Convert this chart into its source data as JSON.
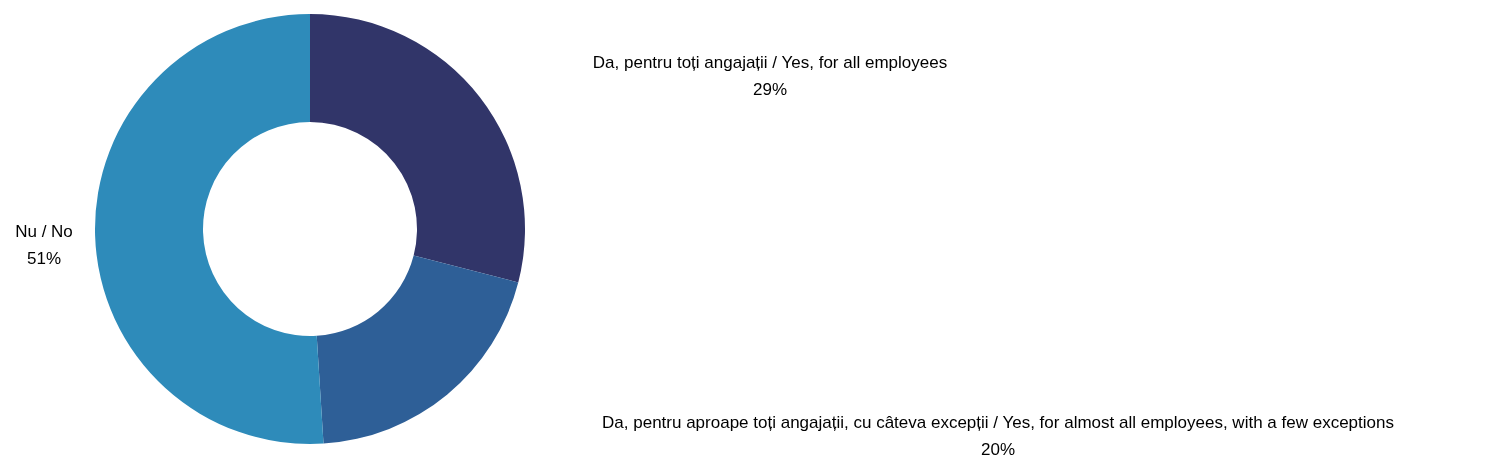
{
  "chart_data": {
    "type": "donut",
    "categories": [
      "Da, pentru toți angajații / Yes, for all employees",
      "Da, pentru aproape toți angajații, cu câteva excepții / Yes, for almost all employees, with a few exceptions",
      "Nu / No"
    ],
    "values": [
      29,
      20,
      51
    ],
    "value_labels": [
      "29%",
      "20%",
      "51%"
    ],
    "colors": [
      "#313569",
      "#2e5f97",
      "#2e8bba"
    ],
    "legend": false
  }
}
